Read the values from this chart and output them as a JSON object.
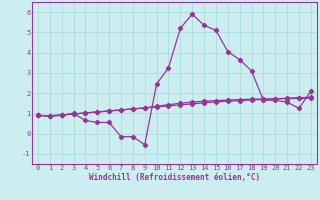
{
  "xlabel": "Windchill (Refroidissement éolien,°C)",
  "background_color": "#cceef0",
  "grid_color": "#aadddd",
  "line_color": "#993399",
  "xlim": [
    -0.5,
    23.5
  ],
  "ylim": [
    -1.5,
    6.5
  ],
  "xticks": [
    0,
    1,
    2,
    3,
    4,
    5,
    6,
    7,
    8,
    9,
    10,
    11,
    12,
    13,
    14,
    15,
    16,
    17,
    18,
    19,
    20,
    21,
    22,
    23
  ],
  "yticks": [
    -1,
    0,
    1,
    2,
    3,
    4,
    5,
    6
  ],
  "line1_x": [
    0,
    1,
    2,
    3,
    4,
    5,
    6,
    7,
    8,
    9,
    10,
    11,
    12,
    13,
    14,
    15,
    16,
    17,
    18,
    19,
    20,
    21,
    22,
    23
  ],
  "line1_y": [
    0.9,
    0.85,
    0.9,
    1.0,
    0.65,
    0.55,
    0.55,
    -0.15,
    -0.15,
    -0.55,
    2.45,
    3.25,
    5.2,
    5.9,
    5.35,
    5.1,
    4.05,
    3.65,
    3.1,
    1.65,
    1.65,
    1.55,
    1.25,
    2.1
  ],
  "line2_x": [
    0,
    1,
    2,
    3,
    4,
    5,
    6,
    7,
    8,
    9,
    10,
    11,
    12,
    13,
    14,
    15,
    16,
    17,
    18,
    19,
    20,
    21,
    22,
    23
  ],
  "line2_y": [
    0.9,
    0.88,
    0.92,
    0.97,
    1.02,
    1.07,
    1.12,
    1.17,
    1.22,
    1.27,
    1.32,
    1.37,
    1.42,
    1.47,
    1.52,
    1.57,
    1.6,
    1.63,
    1.66,
    1.69,
    1.72,
    1.75,
    1.77,
    1.8
  ],
  "line3_x": [
    0,
    1,
    2,
    3,
    4,
    5,
    6,
    7,
    8,
    9,
    10,
    11,
    12,
    13,
    14,
    15,
    16,
    17,
    18,
    19,
    20,
    21,
    22,
    23
  ],
  "line3_y": [
    0.9,
    0.88,
    0.92,
    0.97,
    1.02,
    1.07,
    1.12,
    1.17,
    1.22,
    1.27,
    1.35,
    1.43,
    1.5,
    1.56,
    1.6,
    1.63,
    1.66,
    1.68,
    1.7,
    1.71,
    1.72,
    1.73,
    1.74,
    1.75
  ]
}
